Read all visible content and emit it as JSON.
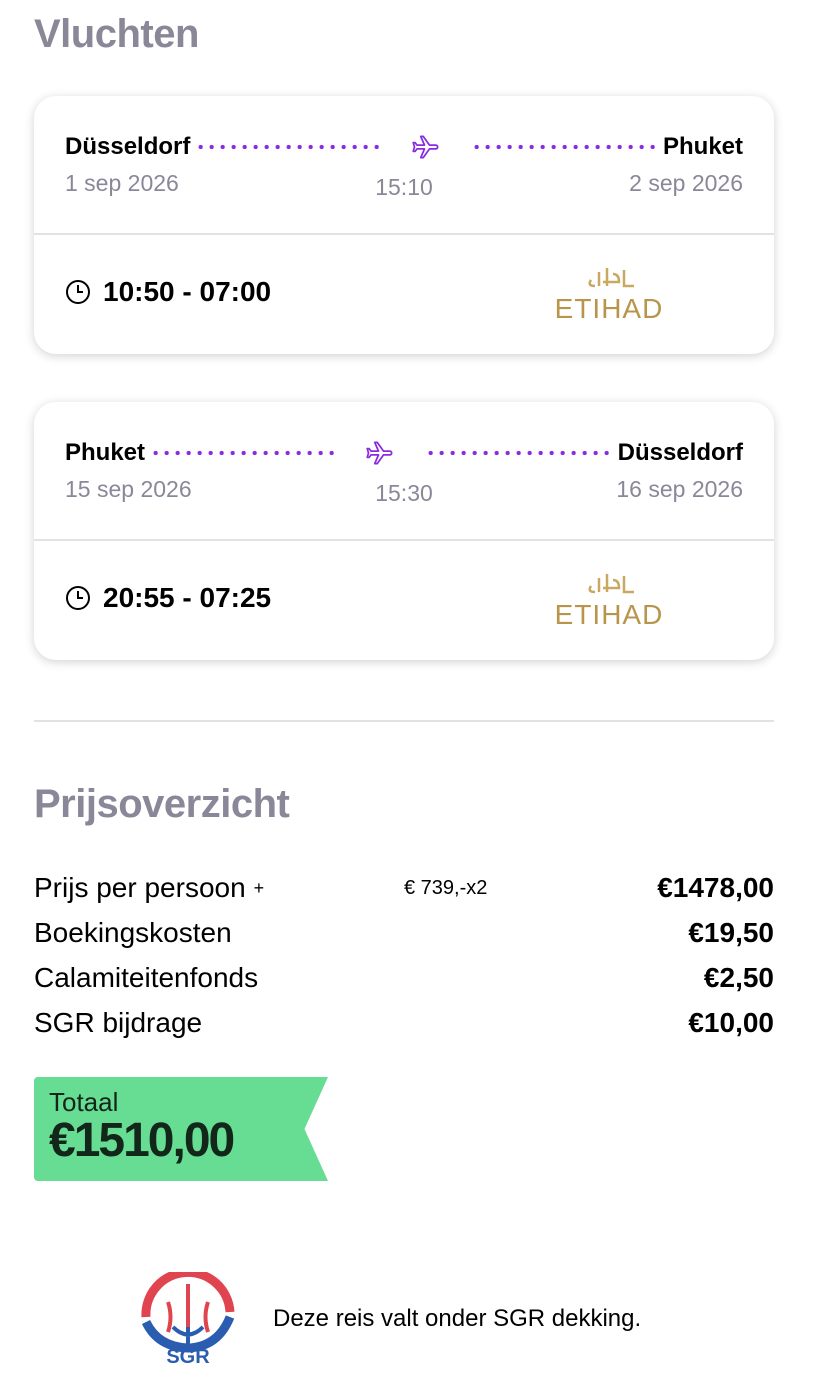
{
  "flights_title": "Vluchten",
  "flights": [
    {
      "from": "Düsseldorf",
      "to": "Phuket",
      "depart_date": "1 sep 2026",
      "arrive_date": "2 sep 2026",
      "duration": "15:10",
      "times": "10:50 - 07:00",
      "airline": "ETIHAD"
    },
    {
      "from": "Phuket",
      "to": "Düsseldorf",
      "depart_date": "15 sep 2026",
      "arrive_date": "16 sep 2026",
      "duration": "15:30",
      "times": "20:55 - 07:25",
      "airline": "ETIHAD"
    }
  ],
  "price_title": "Prijsoverzicht",
  "prices": [
    {
      "label": "Prijs per persoon",
      "plus": "+",
      "unit": "€ 739,-x2",
      "value": "€1478,00"
    },
    {
      "label": "Boekingskosten",
      "value": "€19,50"
    },
    {
      "label": "Calamiteitenfonds",
      "value": "€2,50"
    },
    {
      "label": "SGR bijdrage",
      "value": "€10,00"
    }
  ],
  "total": {
    "label": "Totaal",
    "value": "€1510,00",
    "color": "#66dd92"
  },
  "sgr": {
    "logo_text": "SGR",
    "text": "Deze reis valt onder SGR dekking."
  },
  "colors": {
    "heading": "#8a8799",
    "accent": "#8a2be2",
    "gold": "#b8954a"
  }
}
